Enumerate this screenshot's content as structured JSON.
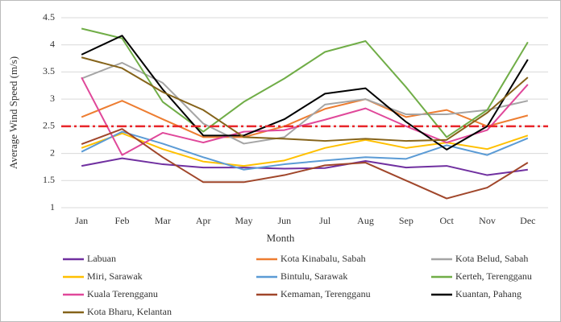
{
  "chart_data": {
    "type": "line",
    "x_label": "Month",
    "y_label": "Average Wind Speed (m/s)",
    "categories": [
      "Jan",
      "Feb",
      "Mar",
      "Apr",
      "May",
      "Jun",
      "Jul",
      "Aug",
      "Sep",
      "Oct",
      "Nov",
      "Dec"
    ],
    "ylim": [
      1,
      4.5
    ],
    "yticks": [
      1,
      1.5,
      2,
      2.5,
      3,
      3.5,
      4,
      4.5
    ],
    "grid": true,
    "reference_line": {
      "value": 2.5,
      "color": "#e8262a"
    },
    "series": [
      {
        "name": "Labuan",
        "color": "#7030a0",
        "values": [
          1.77,
          1.91,
          1.8,
          1.74,
          1.74,
          1.72,
          1.73,
          1.86,
          1.74,
          1.77,
          1.6,
          1.7
        ]
      },
      {
        "name": "Kota Kinabalu, Sabah",
        "color": "#ed7d31",
        "values": [
          2.67,
          2.97,
          2.63,
          2.3,
          2.3,
          2.5,
          2.82,
          3.0,
          2.67,
          2.8,
          2.5,
          2.7
        ]
      },
      {
        "name": "Kota Belud, Sabah",
        "color": "#a5a5a5",
        "values": [
          3.38,
          3.67,
          3.3,
          2.55,
          2.18,
          2.3,
          2.9,
          3.0,
          2.72,
          2.72,
          2.8,
          2.97
        ]
      },
      {
        "name": "Miri, Sarawak",
        "color": "#ffc000",
        "values": [
          2.1,
          2.37,
          2.08,
          1.85,
          1.77,
          1.87,
          2.1,
          2.25,
          2.1,
          2.2,
          2.08,
          2.33
        ]
      },
      {
        "name": "Bintulu, Sarawak",
        "color": "#5b9bd5",
        "values": [
          2.03,
          2.4,
          2.18,
          1.93,
          1.7,
          1.8,
          1.87,
          1.93,
          1.9,
          2.15,
          1.97,
          2.28
        ]
      },
      {
        "name": "Kerteh, Terengganu",
        "color": "#70ad47",
        "values": [
          4.3,
          4.12,
          2.95,
          2.4,
          2.95,
          3.38,
          3.87,
          4.07,
          3.22,
          2.3,
          2.8,
          4.05
        ]
      },
      {
        "name": "Kuala Terengganu",
        "color": "#e0489a",
        "values": [
          3.4,
          1.97,
          2.38,
          2.2,
          2.4,
          2.43,
          2.62,
          2.83,
          2.5,
          2.2,
          2.43,
          3.27
        ]
      },
      {
        "name": "Kemaman, Terengganu",
        "color": "#a0462a",
        "values": [
          2.17,
          2.45,
          1.93,
          1.47,
          1.47,
          1.6,
          1.78,
          1.83,
          1.5,
          1.17,
          1.37,
          1.83
        ]
      },
      {
        "name": "Kuantan, Pahang",
        "color": "#000000",
        "values": [
          3.82,
          4.17,
          3.18,
          2.33,
          2.33,
          2.63,
          3.1,
          3.2,
          2.58,
          2.07,
          2.5,
          3.73
        ]
      },
      {
        "name": "Kota Bharu, Kelantan",
        "color": "#85631a",
        "values": [
          3.77,
          3.57,
          3.13,
          2.8,
          2.3,
          2.27,
          2.23,
          2.27,
          2.23,
          2.25,
          2.75,
          3.4
        ]
      }
    ]
  }
}
